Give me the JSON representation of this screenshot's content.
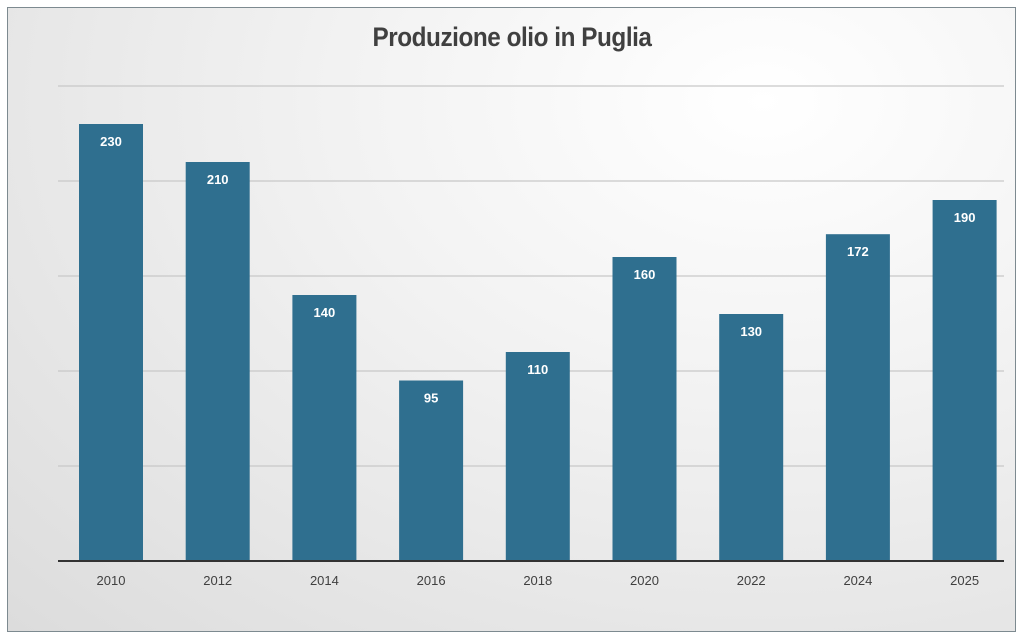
{
  "chart_data": {
    "type": "bar",
    "title": "Produzione olio in Puglia",
    "categories": [
      "2010",
      "2012",
      "2014",
      "2016",
      "2018",
      "2020",
      "2022",
      "2024",
      "2025"
    ],
    "values": [
      230,
      210,
      140,
      95,
      110,
      160,
      130,
      172,
      190
    ],
    "xlabel": "",
    "ylabel": "",
    "ylim": [
      0,
      250
    ],
    "grid": true,
    "gridline_step": 50,
    "y_tick_labels_shown": false,
    "data_labels": true,
    "bar_color": "#2f6f8f",
    "label_color": "#ffffff"
  }
}
